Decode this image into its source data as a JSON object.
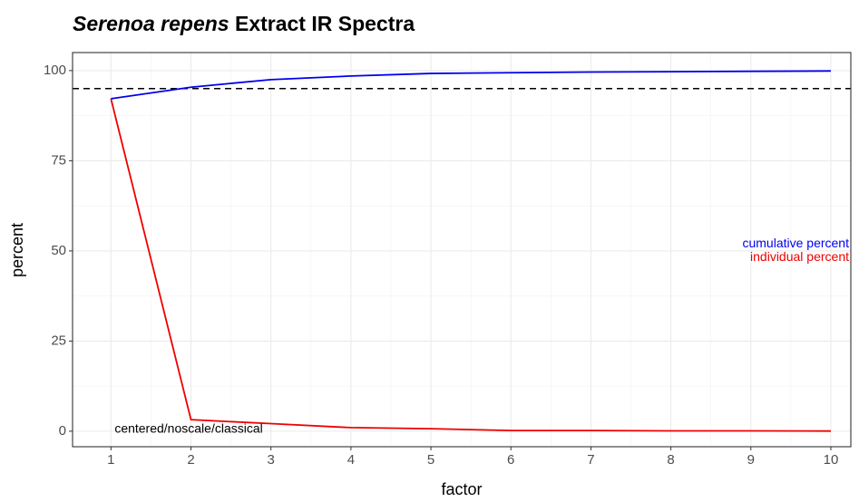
{
  "chart_data": {
    "type": "line",
    "title_italic": "Serenoa repens",
    "title": "Extract IR Spectra",
    "x_label": "factor",
    "y_label": "percent",
    "x": [
      1,
      2,
      3,
      4,
      5,
      6,
      7,
      8,
      9,
      10
    ],
    "series": [
      {
        "name": "cumulative percent",
        "color": "#0000ee",
        "values": [
          92.2,
          95.4,
          97.5,
          98.5,
          99.2,
          99.4,
          99.6,
          99.7,
          99.8,
          99.9
        ]
      },
      {
        "name": "individual percent",
        "color": "#ee0000",
        "values": [
          92.2,
          3.2,
          2.1,
          1.0,
          0.7,
          0.2,
          0.2,
          0.1,
          0.1,
          0.05
        ]
      }
    ],
    "hline": 95,
    "annotation": "centered/noscale/classical",
    "xlim": [
      0.52,
      10.25
    ],
    "ylim": [
      -4.3,
      105
    ],
    "xticks": [
      1,
      2,
      3,
      4,
      5,
      6,
      7,
      8,
      9,
      10
    ],
    "yticks": [
      0,
      25,
      50,
      75,
      100
    ],
    "grid": true,
    "minor_grid": true,
    "legend": "right"
  }
}
